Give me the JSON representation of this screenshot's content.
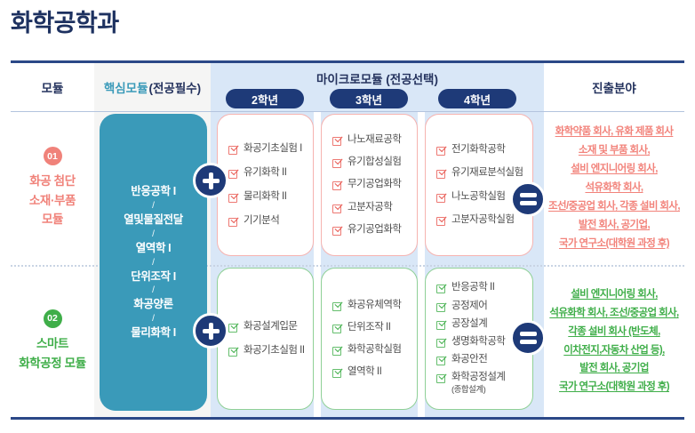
{
  "page": {
    "title": "화학공학과"
  },
  "colors": {
    "navy": "#1e3a78",
    "teal": "#3a9ab9",
    "pink": "#f0827a",
    "green": "#3fae49",
    "light_blue": "#d9e7f7",
    "light_gray": "#f5f5f4"
  },
  "icons": {
    "plus": "+",
    "equals": "=",
    "checkbox": "checked"
  },
  "header": {
    "col_module": "모듈",
    "core_main": "핵심모듈",
    "core_sub": "(전공필수)",
    "micro_title": "마이크로모듈 (전공선택)",
    "years": [
      "2학년",
      "3학년",
      "4학년"
    ],
    "col_career": "진출분야"
  },
  "core": {
    "slash": "/",
    "courses": [
      "반응공학 I",
      "열및물질전달",
      "열역학 I",
      "단위조작 I",
      "화공양론",
      "물리화학 I"
    ]
  },
  "modules": [
    {
      "number": "01",
      "name_lines": [
        "화공 첨단",
        "소재·부품",
        "모듈"
      ],
      "years": [
        {
          "courses": [
            "화공기초실험 I",
            "유기화학 II",
            "물리화학 II",
            "기기분석"
          ]
        },
        {
          "courses": [
            "나노재료공학",
            "유기합성실험",
            "무기공업화학",
            "고분자공학",
            "유기공업화학"
          ]
        },
        {
          "courses": [
            "전기화학공학",
            "유기재료분석실험",
            "나노공학실험",
            "고분자공학실험"
          ]
        }
      ],
      "careers": [
        "화학약품 회사, 유화 제품 회사",
        "소재 및 부품 회사,",
        "설비 엔지니어링 회사,",
        "석유화학 회사,",
        "조선/중공업 회사, 각종 설비 회사,",
        "발전 회사, 공기업,",
        "국가 연구소(대학원 과정 후)"
      ]
    },
    {
      "number": "02",
      "name_lines": [
        "스마트",
        "화학공정 모듈"
      ],
      "years": [
        {
          "courses": [
            "화공설계입문",
            "화공기초실험 II"
          ]
        },
        {
          "courses": [
            "화공유체역학",
            "단위조작 II",
            "화학공학실험",
            "열역학 II"
          ]
        },
        {
          "courses": [
            "반응공학 II",
            "공정제어",
            "공장설계",
            "생명화학공학",
            "화공안전",
            "화학공정설계"
          ],
          "note": "(종합설계)"
        }
      ],
      "careers": [
        "설비 엔지니어링 회사,",
        "석유화학 회사, 조선/중공업 회사,",
        "각종 설비 회사 (반도체,",
        "이차전지,자동차 산업 등),",
        "발전 회사, 공기업",
        "국가 연구소(대학원 과정 후)"
      ]
    }
  ]
}
